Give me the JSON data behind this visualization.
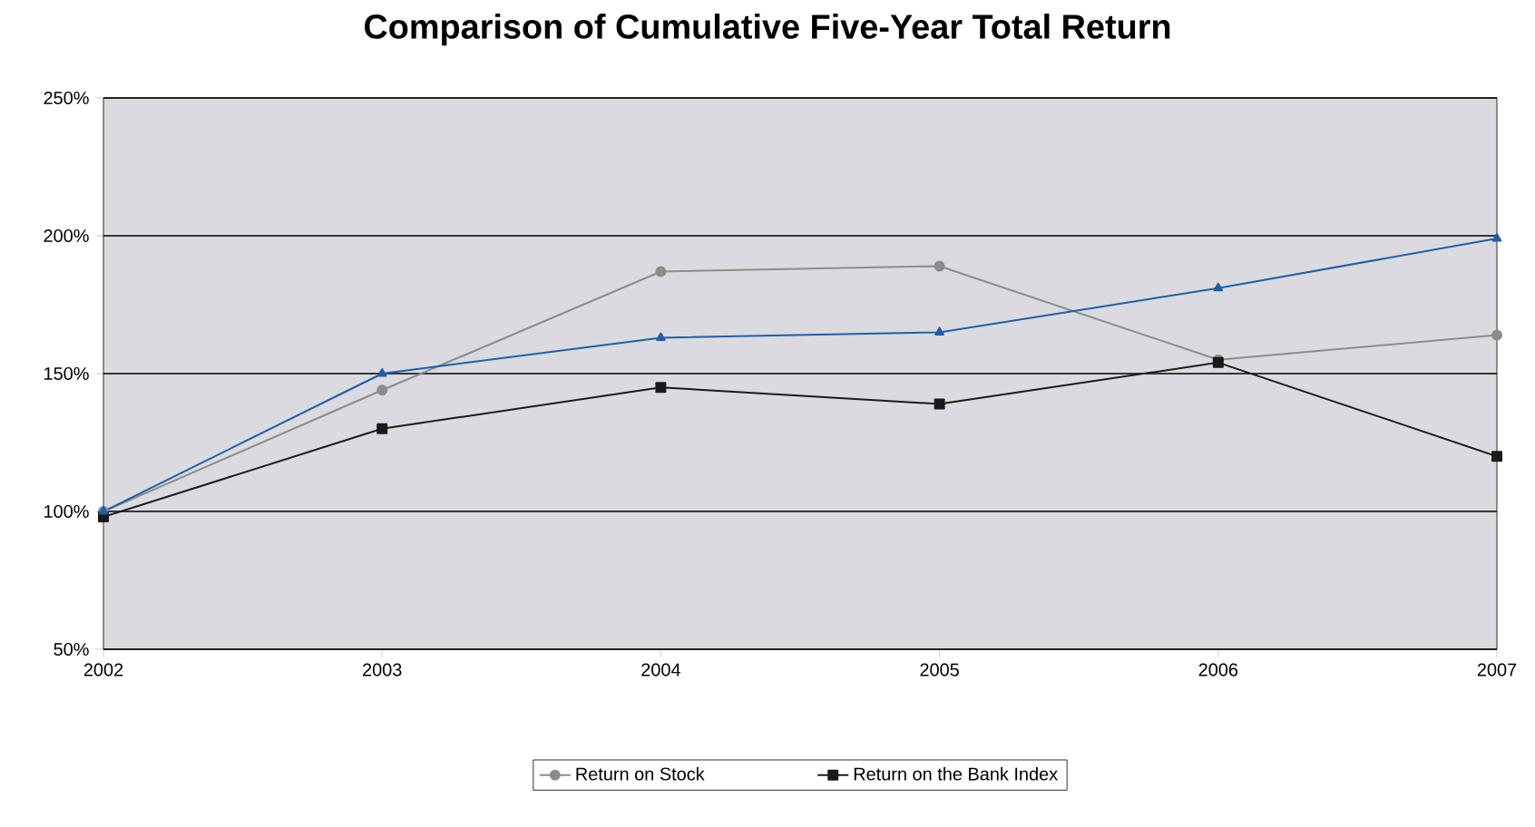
{
  "chart_data": {
    "type": "line",
    "title": "Comparison of Cumulative Five-Year Total Return",
    "x": [
      2002,
      2003,
      2004,
      2005,
      2006,
      2007
    ],
    "series": [
      {
        "color": "#1f5fa8",
        "marker": "triangle",
        "values": [
          100,
          150,
          163,
          165,
          181,
          199
        ]
      },
      {
        "name": "Return on the Bank Index",
        "color": "#1a1a1a",
        "marker": "square",
        "values": [
          98,
          130,
          145,
          139,
          154,
          120
        ]
      },
      {
        "name": "Return on Stock",
        "color": "#8c8c8c",
        "marker": "circle",
        "values": [
          100,
          144,
          187,
          189,
          155,
          164
        ]
      }
    ],
    "xlim": [
      2002,
      2007
    ],
    "xticks": [
      2002,
      2003,
      2004,
      2005,
      2006,
      2007
    ],
    "ylim": [
      50,
      250
    ],
    "yticks": [
      {
        "value": 50,
        "label": "50%"
      },
      {
        "value": 100,
        "label": "100%"
      },
      {
        "value": 150,
        "label": "150%"
      },
      {
        "value": 200,
        "label": "200%"
      },
      {
        "value": 250,
        "label": "250%"
      }
    ],
    "grid": "y",
    "legend": "bottom",
    "line_style": "solid"
  }
}
